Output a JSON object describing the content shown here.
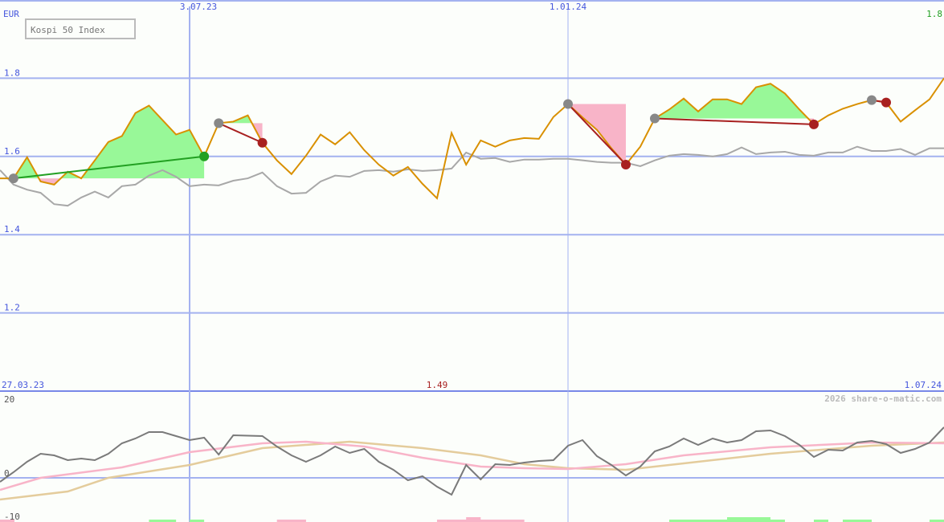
{
  "header": {
    "currency": "EUR",
    "title": "Kospi 50 Index",
    "last_value": "1.8",
    "low_value": "1.49",
    "watermark": "2026 share-o-matic.com"
  },
  "x_labels": {
    "top": [
      "3.07.23",
      "1.01.24"
    ],
    "bottom_start": "27.03.23",
    "bottom_end": "1.07.24"
  },
  "colors": {
    "grid": "#a4b2f0",
    "separator": "#7888e8",
    "axis_text": "#4455dd",
    "price": "#d99000",
    "benchmark": "#a8a8a8",
    "gain_fill": "#98f898",
    "loss_fill": "#f8b4c8",
    "entry_marker": "#888888",
    "win_exit": "#22a022",
    "loss_exit": "#a82020",
    "last_value": "#22a022",
    "low_value": "#a82020",
    "momentum": "#7a7a7a",
    "ma_fast": "#f8b4c8",
    "ma_slow": "#e4cc9c"
  },
  "chart_data": {
    "x": [
      "27.03.23",
      "03.04.23",
      "10.04.23",
      "17.04.23",
      "24.04.23",
      "01.05.23",
      "08.05.23",
      "15.05.23",
      "22.05.23",
      "29.05.23",
      "05.06.23",
      "12.06.23",
      "19.06.23",
      "26.06.23",
      "03.07.23",
      "10.07.23",
      "17.07.23",
      "24.07.23",
      "31.07.23",
      "07.08.23",
      "14.08.23",
      "21.08.23",
      "28.08.23",
      "04.09.23",
      "11.09.23",
      "18.09.23",
      "25.09.23",
      "02.10.23",
      "09.10.23",
      "16.10.23",
      "23.10.23",
      "30.10.23",
      "06.11.23",
      "13.11.23",
      "20.11.23",
      "27.11.23",
      "04.12.23",
      "11.12.23",
      "18.12.23",
      "25.12.23",
      "01.01.24",
      "08.01.24",
      "15.01.24",
      "22.01.24",
      "29.01.24",
      "05.02.24",
      "12.02.24",
      "19.02.24",
      "26.02.24",
      "04.03.24",
      "11.03.24",
      "18.03.24",
      "25.03.24",
      "01.04.24",
      "08.04.24",
      "15.04.24",
      "22.04.24",
      "29.04.24",
      "06.05.24",
      "13.05.24",
      "20.05.24",
      "27.05.24",
      "03.06.24",
      "10.06.24",
      "17.06.24",
      "24.06.24",
      "01.07.24"
    ],
    "panels": [
      {
        "type": "line",
        "ylabel": "EUR",
        "ylim": [
          1.0,
          2.0
        ],
        "yticks": [
          1.2,
          1.4,
          1.6,
          1.8
        ],
        "grid": true,
        "series": [
          {
            "role": "price",
            "values": [
              1.544,
              1.544,
              1.598,
              1.536,
              1.528,
              1.561,
              1.544,
              1.59,
              1.637,
              1.652,
              1.711,
              1.73,
              1.693,
              1.656,
              1.668,
              1.6,
              1.685,
              1.689,
              1.705,
              1.635,
              1.59,
              1.555,
              1.602,
              1.656,
              1.631,
              1.662,
              1.616,
              1.579,
              1.551,
              1.573,
              1.53,
              1.493,
              1.66,
              1.579,
              1.641,
              1.625,
              1.641,
              1.647,
              1.645,
              1.701,
              1.734,
              1.7,
              1.668,
              1.621,
              1.579,
              1.625,
              1.697,
              1.72,
              1.748,
              1.715,
              1.746,
              1.746,
              1.734,
              1.777,
              1.786,
              1.761,
              1.72,
              1.682,
              1.705,
              1.722,
              1.734,
              1.744,
              1.738,
              1.689,
              1.718,
              1.746,
              1.8
            ]
          },
          {
            "role": "benchmark",
            "values": [
              1.565,
              1.528,
              1.515,
              1.507,
              1.478,
              1.474,
              1.495,
              1.51,
              1.495,
              1.524,
              1.528,
              1.551,
              1.565,
              1.548,
              1.524,
              1.528,
              1.526,
              1.538,
              1.544,
              1.559,
              1.524,
              1.505,
              1.507,
              1.536,
              1.551,
              1.548,
              1.563,
              1.565,
              1.561,
              1.567,
              1.563,
              1.565,
              1.569,
              1.61,
              1.594,
              1.596,
              1.586,
              1.592,
              1.592,
              1.594,
              1.594,
              1.59,
              1.586,
              1.584,
              1.584,
              1.575,
              1.59,
              1.602,
              1.606,
              1.604,
              1.6,
              1.606,
              1.623,
              1.606,
              1.61,
              1.612,
              1.604,
              1.602,
              1.61,
              1.61,
              1.625,
              1.614,
              1.614,
              1.619,
              1.604,
              1.621,
              1.621
            ]
          }
        ],
        "trades": [
          {
            "entry": "03.04.23",
            "entry_value": 1.544,
            "exit": "10.07.23",
            "exit_value": 1.6,
            "result": "win"
          },
          {
            "entry": "17.07.23",
            "entry_value": 1.685,
            "exit": "07.08.23",
            "exit_value": 1.635,
            "result": "loss"
          },
          {
            "entry": "01.01.24",
            "entry_value": 1.734,
            "exit": "29.01.24",
            "exit_value": 1.579,
            "result": "loss"
          },
          {
            "entry": "12.02.24",
            "entry_value": 1.697,
            "exit": "29.04.24",
            "exit_value": 1.682,
            "result": "loss"
          },
          {
            "entry": "27.05.24",
            "entry_value": 1.744,
            "exit": "03.06.24",
            "exit_value": 1.738,
            "result": "loss"
          }
        ]
      },
      {
        "type": "line",
        "ylim": [
          -11,
          21.6
        ],
        "yticks": [
          20,
          0,
          -10
        ],
        "grid_at": [
          0
        ],
        "series": [
          {
            "role": "momentum",
            "values": [
              -1.0,
              1.4,
              4.0,
              6.0,
              5.6,
              4.4,
              4.8,
              4.4,
              6.0,
              8.6,
              9.8,
              11.4,
              11.4,
              10.4,
              9.4,
              10.0,
              5.8,
              10.6,
              10.5,
              10.4,
              7.8,
              5.6,
              4.0,
              5.6,
              7.8,
              6.2,
              7.2,
              4.0,
              2.0,
              -0.6,
              0.4,
              -2.2,
              -4.2,
              3.2,
              -0.4,
              3.4,
              3.2,
              3.8,
              4.2,
              4.4,
              8.0,
              9.4,
              5.4,
              3.2,
              0.6,
              2.8,
              6.6,
              7.8,
              9.8,
              8.2,
              9.8,
              8.8,
              9.4,
              11.6,
              11.8,
              10.4,
              8.2,
              5.2,
              7.0,
              6.8,
              8.8,
              9.2,
              8.4,
              6.2,
              7.2,
              8.8,
              12.6
            ]
          },
          {
            "role": "ma_fast",
            "points": [
              [
                "27.03.23",
                -3
              ],
              [
                "17.04.23",
                0
              ],
              [
                "29.05.23",
                2.6
              ],
              [
                "03.07.23",
                6.4
              ],
              [
                "07.08.23",
                8.6
              ],
              [
                "28.08.23",
                9
              ],
              [
                "25.09.23",
                7.8
              ],
              [
                "23.10.23",
                5
              ],
              [
                "20.11.23",
                2.8
              ],
              [
                "11.12.23",
                2.4
              ],
              [
                "01.01.24",
                2.2
              ],
              [
                "29.01.24",
                3.4
              ],
              [
                "26.02.24",
                5.6
              ],
              [
                "08.04.24",
                7.6
              ],
              [
                "27.05.24",
                8.8
              ],
              [
                "01.07.24",
                8.6
              ]
            ]
          },
          {
            "role": "ma_slow",
            "points": [
              [
                "27.03.23",
                -5.4
              ],
              [
                "01.05.23",
                -3.4
              ],
              [
                "22.05.23",
                0
              ],
              [
                "03.07.23",
                3.2
              ],
              [
                "07.08.23",
                7.4
              ],
              [
                "18.09.23",
                9
              ],
              [
                "23.10.23",
                7.4
              ],
              [
                "20.11.23",
                5.6
              ],
              [
                "11.12.23",
                3.4
              ],
              [
                "01.01.24",
                2.4
              ],
              [
                "29.01.24",
                2.0
              ],
              [
                "26.02.24",
                3.6
              ],
              [
                "08.04.24",
                6.0
              ],
              [
                "27.05.24",
                8.0
              ],
              [
                "01.07.24",
                8.8
              ]
            ]
          }
        ],
        "signal_bars": [
          {
            "from": "27.03.23",
            "to": "03.04.23",
            "state": "loss",
            "level": 1
          },
          {
            "from": "12.06.23",
            "to": "26.06.23",
            "state": "win",
            "level": 1
          },
          {
            "from": "03.07.23",
            "to": "10.07.23",
            "state": "win",
            "level": 1
          },
          {
            "from": "14.08.23",
            "to": "28.08.23",
            "state": "loss",
            "level": 1
          },
          {
            "from": "30.10.23",
            "to": "11.12.23",
            "state": "loss",
            "level": 1
          },
          {
            "from": "13.11.23",
            "to": "20.11.23",
            "state": "loss",
            "level": 2
          },
          {
            "from": "19.02.24",
            "to": "15.04.24",
            "state": "win",
            "level": 1
          },
          {
            "from": "18.03.24",
            "to": "08.04.24",
            "state": "win",
            "level": 2
          },
          {
            "from": "29.04.24",
            "to": "06.05.24",
            "state": "win",
            "level": 1
          },
          {
            "from": "13.05.24",
            "to": "27.05.24",
            "state": "win",
            "level": 1
          },
          {
            "from": "24.06.24",
            "to": "01.07.24",
            "state": "win",
            "level": 1
          }
        ]
      }
    ]
  }
}
